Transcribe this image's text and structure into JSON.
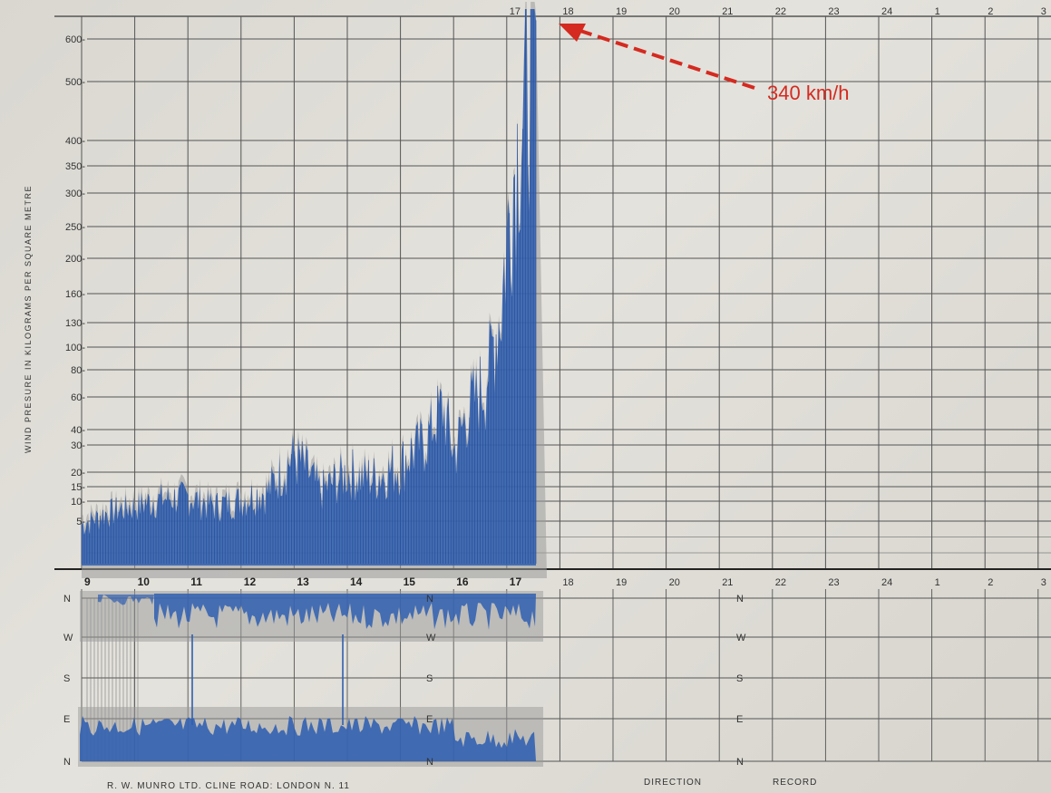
{
  "chart_data": {
    "type": "area",
    "title": "",
    "ylabel": "WIND PRESURE IN KILOGRAMS PER SQUARE METRE",
    "xlabel": "",
    "y_ticks": [
      "5",
      "10",
      "15",
      "20",
      "30",
      "40",
      "60",
      "80",
      "100",
      "130",
      "160",
      "200",
      "250",
      "300",
      "350",
      "400",
      "500",
      "600"
    ],
    "x_ticks_top": [
      "17",
      "18",
      "19",
      "20",
      "21",
      "22",
      "23",
      "24",
      "1",
      "2",
      "3"
    ],
    "x_ticks_bottom": [
      "9",
      "10",
      "11",
      "12",
      "13",
      "14",
      "15",
      "16",
      "17",
      "18",
      "19",
      "20",
      "21",
      "22",
      "23",
      "24",
      "1",
      "2",
      "3"
    ],
    "direction_labels": [
      "N",
      "W",
      "S",
      "E",
      "N"
    ],
    "series": [
      {
        "values_x": [
          9,
          9.5,
          10,
          10.5,
          11,
          11.5,
          12,
          12.5,
          13,
          13.5,
          14,
          14.5,
          15,
          15.5,
          15.8,
          16,
          16.3,
          16.6,
          16.9,
          17.1,
          17.3,
          17.45,
          17.55
        ],
        "values_y": [
          5,
          8,
          10,
          12,
          13,
          10,
          12,
          15,
          30,
          15,
          22,
          20,
          25,
          40,
          60,
          30,
          60,
          80,
          160,
          350,
          500,
          620,
          650
        ]
      }
    ],
    "annotation": {
      "text": "340 km/h",
      "points_to_x": 18
    },
    "footer": {
      "maker": "R. W. MUNRO LTD. CLINE ROAD: LONDON N. 11",
      "direction": "DIRECTION",
      "record": "RECORD"
    }
  },
  "colors": {
    "ink": "#2f5fb0",
    "ink_dark": "#1e4596",
    "grid": "#555555",
    "annotation": "#d42a20"
  }
}
